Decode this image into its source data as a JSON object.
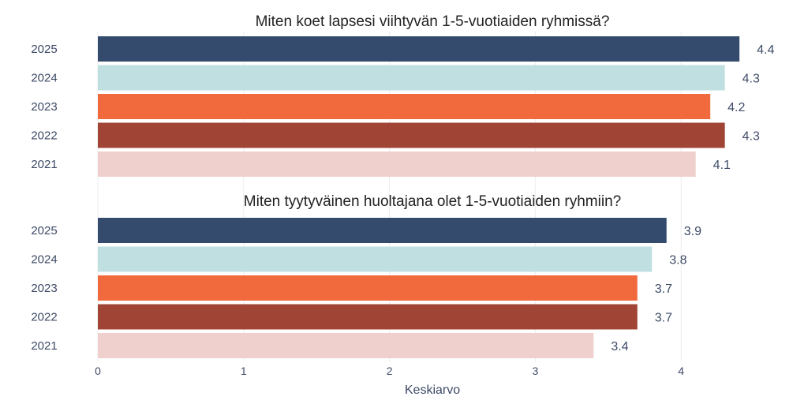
{
  "chart_data": [
    {
      "type": "bar",
      "orientation": "horizontal",
      "title": "Miten koet lapsesi viihtyvän 1-5-vuotiaiden ryhmissä?",
      "categories": [
        "2025",
        "2024",
        "2023",
        "2022",
        "2021"
      ],
      "values": [
        4.4,
        4.3,
        4.2,
        4.3,
        4.1
      ],
      "value_labels": [
        "4.4",
        "4.3",
        "4.2",
        "4.3",
        "4.1"
      ],
      "colors": [
        "#344b6e",
        "#bfdfe0",
        "#f06a3e",
        "#a04535",
        "#efd0cc"
      ],
      "xlim": [
        0,
        4
      ],
      "grid": true
    },
    {
      "type": "bar",
      "orientation": "horizontal",
      "title": "Miten tyytyväinen huoltajana olet 1-5-vuotiaiden ryhmiin?",
      "categories": [
        "2025",
        "2024",
        "2023",
        "2022",
        "2021"
      ],
      "values": [
        3.9,
        3.8,
        3.7,
        3.7,
        3.4
      ],
      "value_labels": [
        "3.9",
        "3.8",
        "3.7",
        "3.7",
        "3.4"
      ],
      "colors": [
        "#344b6e",
        "#bfdfe0",
        "#f06a3e",
        "#a04535",
        "#efd0cc"
      ],
      "xlim": [
        0,
        4
      ],
      "grid": true
    }
  ],
  "axis": {
    "xlabel": "Keskiarvo",
    "ticks": [
      "0",
      "1",
      "2",
      "3",
      "4"
    ],
    "tick_values": [
      0,
      1,
      2,
      3,
      4
    ]
  }
}
